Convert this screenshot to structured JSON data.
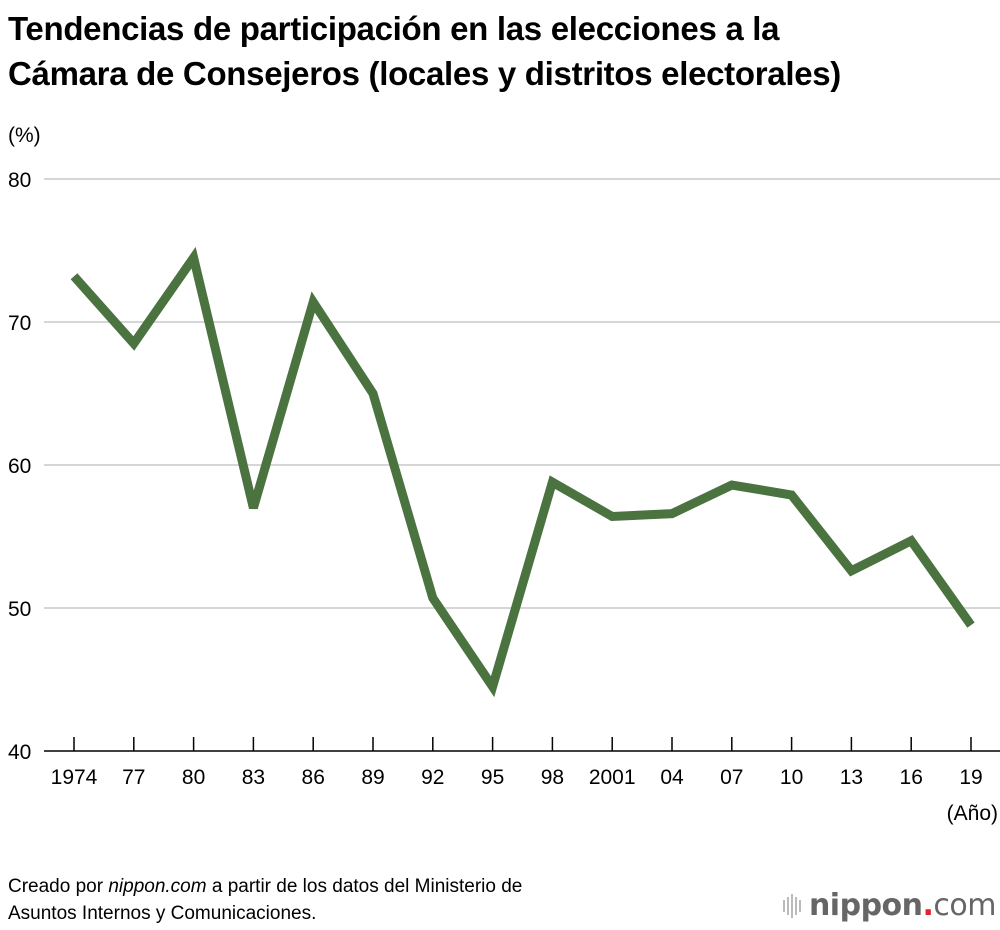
{
  "chart_data": {
    "type": "line",
    "title": "Tendencias de participación en las elecciones a la Cámara de Consejeros (locales y distritos electorales)",
    "title_lines": [
      "Tendencias de participación en las elecciones a la",
      "Cámara de Consejeros (locales y distritos electorales)"
    ],
    "ylabel": "(%)",
    "xlabel": "(Año)",
    "categories": [
      "1974",
      "77",
      "80",
      "83",
      "86",
      "89",
      "92",
      "95",
      "98",
      "2001",
      "04",
      "07",
      "10",
      "13",
      "16",
      "19"
    ],
    "series": [
      {
        "values": [
          73.2,
          68.5,
          74.5,
          57.0,
          71.4,
          65.0,
          50.7,
          44.5,
          58.8,
          56.4,
          56.6,
          58.6,
          57.9,
          52.6,
          54.7,
          48.8
        ],
        "color": "#4a7340"
      }
    ],
    "ylim": [
      40,
      80
    ],
    "yticks": [
      40,
      50,
      60,
      70,
      80
    ],
    "grid": true,
    "gridline_color": "#c8c8c8"
  },
  "source": {
    "prefix": "Creado por ",
    "site": "nippon.com",
    "suffix": " a partir de los datos del Ministerio de",
    "line2": "Asuntos Internos y Comunicaciones."
  },
  "logo": {
    "name": "nippon",
    "dot": ".",
    "tld": "com"
  }
}
